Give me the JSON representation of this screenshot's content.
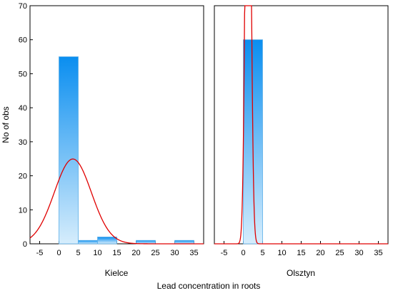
{
  "chart_data": {
    "type": "bar",
    "xlabel": "Lead concentration in roots",
    "ylabel": "No of obs",
    "ylim": [
      0,
      70
    ],
    "yticks": [
      0,
      10,
      20,
      30,
      40,
      50,
      60,
      70
    ],
    "xlim": [
      -7.5,
      37.5
    ],
    "xticks": [
      -5,
      0,
      5,
      10,
      15,
      20,
      25,
      30,
      35
    ],
    "grid": false,
    "bar_color_top": "#0a8ef0",
    "bar_color_bottom": "#d6edfc",
    "bar_edge_color": "#5aaee8",
    "curve_color": "#e00000",
    "panels": [
      {
        "label": "Kielce",
        "bins": [
          {
            "from": 0,
            "to": 5,
            "count": 55
          },
          {
            "from": 5,
            "to": 10,
            "count": 1
          },
          {
            "from": 10,
            "to": 15,
            "count": 2
          },
          {
            "from": 15,
            "to": 20,
            "count": 0
          },
          {
            "from": 20,
            "to": 25,
            "count": 1
          },
          {
            "from": 25,
            "to": 30,
            "count": 0
          },
          {
            "from": 30,
            "to": 35,
            "count": 1
          }
        ],
        "normal_fit": {
          "mean": 3.6,
          "sd": 4.8
        }
      },
      {
        "label": "Olsztyn",
        "bins": [
          {
            "from": 0,
            "to": 5,
            "count": 60
          }
        ],
        "normal_fit": {
          "mean": 1.25,
          "sd": 0.65
        }
      }
    ]
  }
}
